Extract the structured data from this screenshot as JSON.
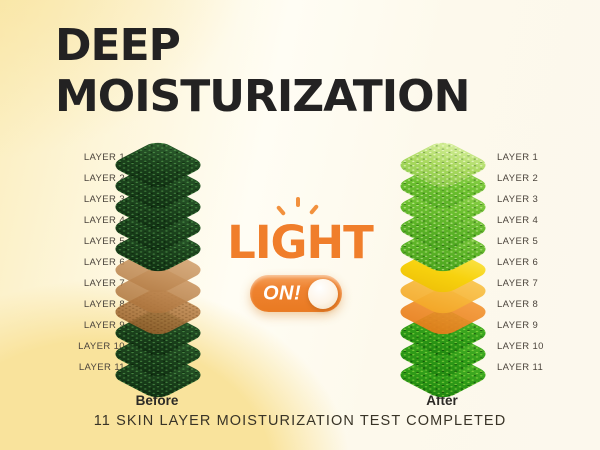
{
  "title": {
    "line1": "DEEP",
    "line2": "MOISTURIZATION"
  },
  "layers": [
    {
      "label": "LAYER 1",
      "before": "dark-green",
      "after": "fresh-light"
    },
    {
      "label": "LAYER 2",
      "before": "dark-green",
      "after": "fresh-green"
    },
    {
      "label": "LAYER 3",
      "before": "dark-green",
      "after": "fresh-green"
    },
    {
      "label": "LAYER 4",
      "before": "dark-green",
      "after": "fresh-mid"
    },
    {
      "label": "LAYER 5",
      "before": "dark-green",
      "after": "fresh-mid"
    },
    {
      "label": "LAYER 6",
      "before": "dry-tan-light",
      "after": "hydrated-yellow"
    },
    {
      "label": "LAYER 7",
      "before": "dry-tan",
      "after": "hydrated-amber"
    },
    {
      "label": "LAYER 8",
      "before": "dry-tan-dark",
      "after": "hydrated-orange"
    },
    {
      "label": "LAYER 9",
      "before": "dark-green",
      "after": "vivid-green"
    },
    {
      "label": "LAYER 10",
      "before": "dark-green",
      "after": "vivid-green"
    },
    {
      "label": "LAYER 11",
      "before": "dark-green",
      "after": "vivid-green"
    }
  ],
  "stacks": {
    "before": {
      "caption": "Before"
    },
    "after": {
      "caption": "After"
    }
  },
  "light": {
    "label": "LIGHT",
    "toggle_state": "ON!"
  },
  "footer": {
    "tagline": "11 SKIN LAYER MOISTURIZATION TEST COMPLETED"
  },
  "colors": {
    "accent_orange": "#EE7D26",
    "title_text": "#232222",
    "label_text": "#4B443C",
    "dark_green": "#1D451E",
    "fresh_green": "#6CC02F",
    "vivid_green": "#2F9C18",
    "dry_tan": "#B97E4B",
    "hydrated_yellow": "#F7D20E",
    "hydrated_amber": "#F3A726",
    "hydrated_orange": "#E67B18",
    "background_yellow": "#F9E39C"
  }
}
